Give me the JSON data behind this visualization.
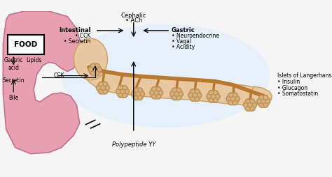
{
  "bg_color": "#f0f0f0",
  "stomach_color": "#e8a0b0",
  "stomach_dark": "#d080a0",
  "pancreas_color": "#e8c8a0",
  "pancreas_dark": "#c8a060",
  "duct_color": "#b87830",
  "acini_color": "#d4b080",
  "acini_ring": "#c09050",
  "food_box_color": "#ffffff",
  "food_box_edge": "#000000",
  "title": "",
  "texts": {
    "food": "FOOD",
    "gastric_acid": "Gastric\nacid",
    "lipids": "Lipids",
    "cck": "CCK",
    "secretin": "Secretin",
    "bile": "Bile",
    "cephalic": "Cephalic",
    "ach": "• ACh",
    "intestinal": "Intestinal",
    "ccki": "• CCK",
    "secretini": "• Secretin",
    "gastric": "Gastric",
    "neuroendocrine": "• Neuroendocrine",
    "vagal": "• Vagal",
    "acidity": "• Acidity",
    "islets": "Islets of Langerhans",
    "insulin": "• Insulin",
    "glucagon": "• Glucagon",
    "somatostatin": "• Somatostatin",
    "polypeptide": "Polypeptide YY"
  }
}
